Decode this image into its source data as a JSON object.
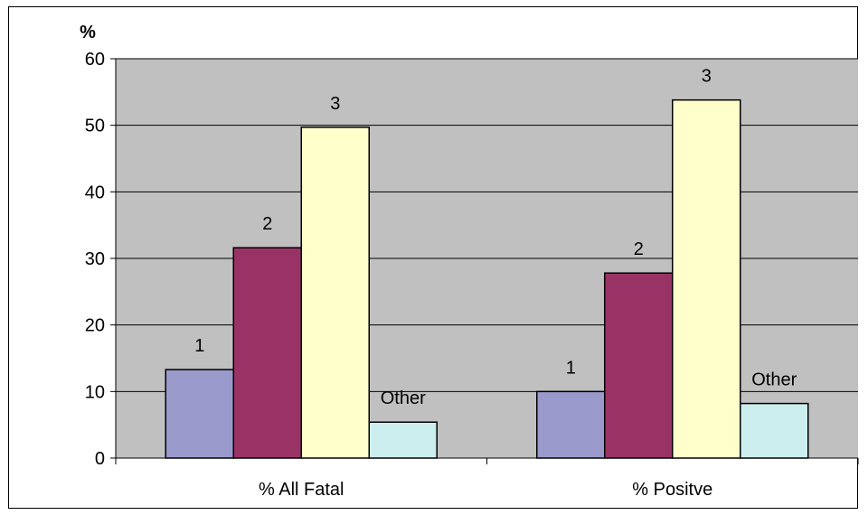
{
  "chart_data": {
    "type": "bar",
    "y_unit_label": "%",
    "categories": [
      "% All Fatal",
      "% Positve"
    ],
    "series": [
      {
        "name": "1",
        "values": [
          13.3,
          10.0
        ],
        "color": "#9999cc"
      },
      {
        "name": "2",
        "values": [
          31.6,
          27.8
        ],
        "color": "#993366"
      },
      {
        "name": "3",
        "values": [
          49.7,
          53.8
        ],
        "color": "#ffffcc"
      },
      {
        "name": "Other",
        "values": [
          5.4,
          8.2
        ],
        "color": "#cceeee"
      }
    ],
    "ylim": [
      0,
      60
    ],
    "yticks": [
      0,
      10,
      20,
      30,
      40,
      50,
      60
    ],
    "grid": true,
    "plot_background": "#c0c0c0",
    "legend": "none"
  }
}
